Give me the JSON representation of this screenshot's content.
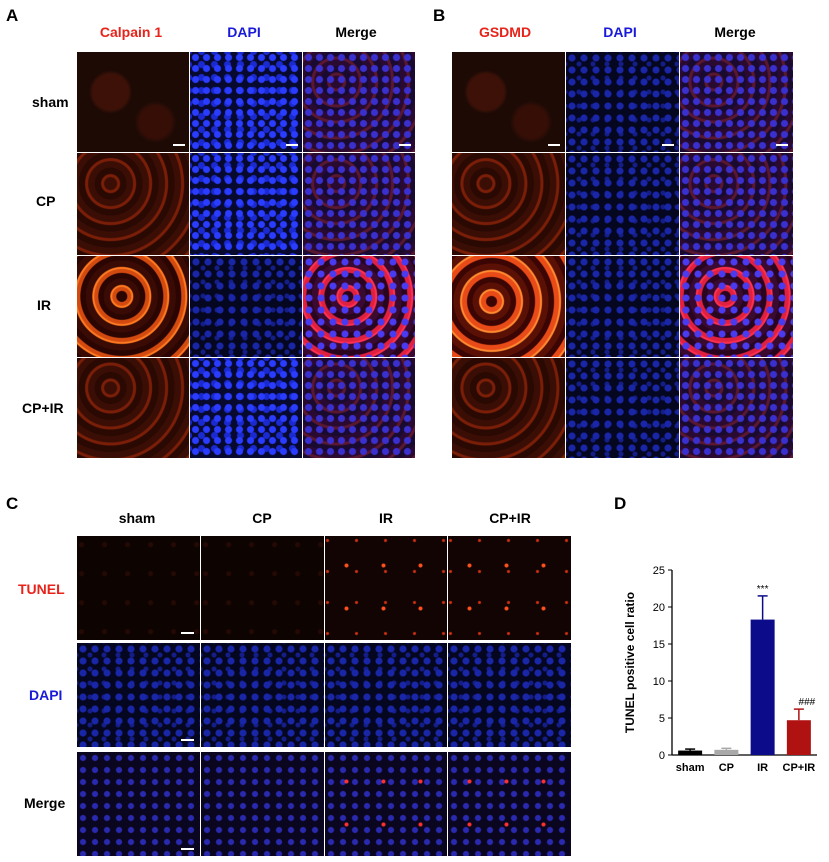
{
  "panels": {
    "a": {
      "letter": "A",
      "headers": [
        "Calpain 1",
        "DAPI",
        "Merge"
      ],
      "rows": [
        "sham",
        "CP",
        "IR",
        "CP+IR"
      ]
    },
    "b": {
      "letter": "B",
      "headers": [
        "GSDMD",
        "DAPI",
        "Merge"
      ]
    },
    "c": {
      "letter": "C",
      "headers": [
        "sham",
        "CP",
        "IR",
        "CP+IR"
      ],
      "rows": [
        "TUNEL",
        "DAPI",
        "Merge"
      ]
    },
    "d": {
      "letter": "D"
    }
  },
  "colors": {
    "red_label": "#e8231a",
    "blue_label": "#1a1ad8",
    "bar_sham": "#000000",
    "bar_cp": "#a9a9a9",
    "bar_ir": "#0c0c8a",
    "bar_cpir": "#b01212"
  },
  "chart_data": {
    "type": "bar",
    "ylabel": "TUNEL positive cell ratio",
    "xlabel": "",
    "ylim": [
      0,
      25
    ],
    "yticks": [
      0,
      5,
      10,
      15,
      20,
      25
    ],
    "categories": [
      "sham",
      "CP",
      "IR",
      "CP+IR"
    ],
    "values": [
      0.6,
      0.7,
      18.3,
      4.7
    ],
    "errors": [
      0.2,
      0.2,
      3.2,
      1.5
    ],
    "annotations": [
      "",
      "",
      "***",
      "###"
    ],
    "colors": [
      "#000000",
      "#a9a9a9",
      "#0c0c8a",
      "#b01212"
    ],
    "grid": false
  }
}
